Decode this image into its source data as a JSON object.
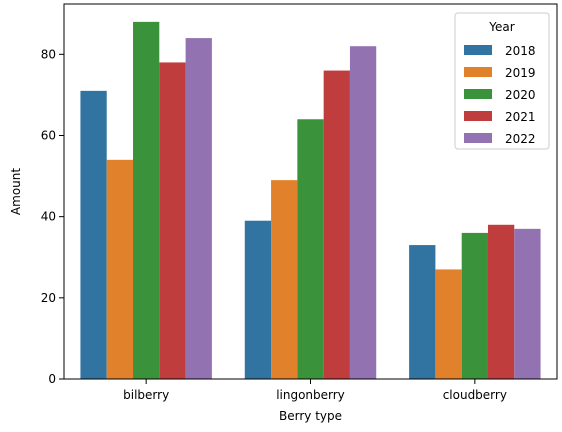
{
  "chart_data": {
    "type": "bar",
    "categories": [
      "bilberry",
      "lingonberry",
      "cloudberry"
    ],
    "series": [
      {
        "name": "2018",
        "color": "#3274a1",
        "values": [
          71,
          39,
          33
        ]
      },
      {
        "name": "2019",
        "color": "#e1812c",
        "values": [
          54,
          49,
          27
        ]
      },
      {
        "name": "2020",
        "color": "#3a923a",
        "values": [
          88,
          64,
          36
        ]
      },
      {
        "name": "2021",
        "color": "#c03d3e",
        "values": [
          78,
          76,
          38
        ]
      },
      {
        "name": "2022",
        "color": "#9372b2",
        "values": [
          84,
          82,
          37
        ]
      }
    ],
    "title": "",
    "xlabel": "Berry type",
    "ylabel": "Amount",
    "ylim": [
      0,
      92.4
    ],
    "yticks": [
      0,
      20,
      40,
      60,
      80
    ],
    "grid": false,
    "legend": {
      "title": "Year",
      "placement": "top-right"
    }
  }
}
